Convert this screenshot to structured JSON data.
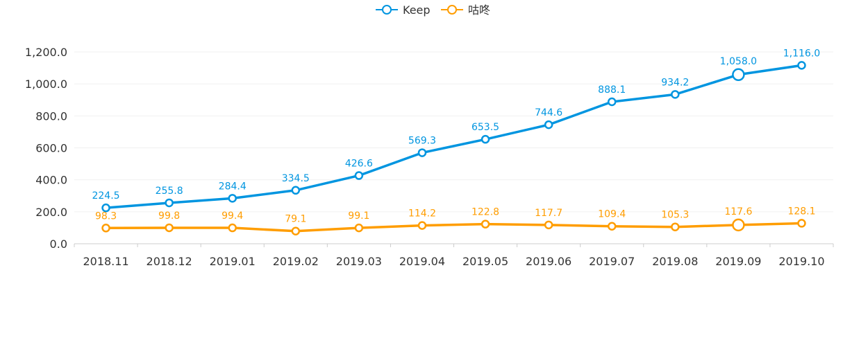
{
  "chart_data": {
    "type": "line",
    "title": "",
    "xlabel": "",
    "ylabel": "",
    "categories": [
      "2018.11",
      "2018.12",
      "2019.01",
      "2019.02",
      "2019.03",
      "2019.04",
      "2019.05",
      "2019.06",
      "2019.07",
      "2019.08",
      "2019.09",
      "2019.10"
    ],
    "ylim": [
      0,
      1200
    ],
    "yticks": [
      0,
      200,
      400,
      600,
      800,
      1000,
      1200
    ],
    "ytick_labels": [
      "0.0",
      "200.0",
      "400.0",
      "600.0",
      "800.0",
      "1,000.0",
      "1,200.0"
    ],
    "grid": true,
    "legend_position": "top-center",
    "highlighted_category": "2019.09",
    "series": [
      {
        "name": "Keep",
        "color": "#0095e0",
        "values": [
          224.5,
          255.8,
          284.4,
          334.5,
          426.6,
          569.3,
          653.5,
          744.6,
          888.1,
          934.2,
          1058.0,
          1116.0
        ],
        "labels": [
          "224.5",
          "255.8",
          "284.4",
          "334.5",
          "426.6",
          "569.3",
          "653.5",
          "744.6",
          "888.1",
          "934.2",
          "1,058.0",
          "1,116.0"
        ]
      },
      {
        "name": "咕咚",
        "color": "#ff9d00",
        "values": [
          98.3,
          99.8,
          99.4,
          79.1,
          99.1,
          114.2,
          122.8,
          117.7,
          109.4,
          105.3,
          117.6,
          128.1
        ],
        "labels": [
          "98.3",
          "99.8",
          "99.4",
          "79.1",
          "99.1",
          "114.2",
          "122.8",
          "117.7",
          "109.4",
          "105.3",
          "117.6",
          "128.1"
        ]
      }
    ]
  }
}
